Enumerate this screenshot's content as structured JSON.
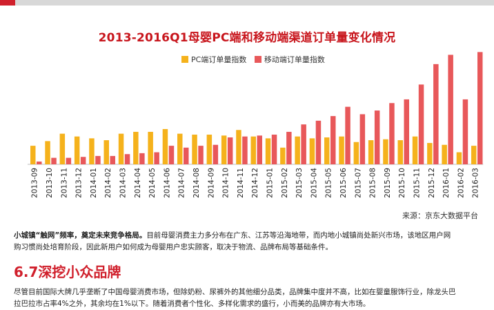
{
  "chart_data": {
    "type": "bar",
    "title": "2013-2016Q1母婴PC端和移动端渠道订单量变化情况",
    "categories": [
      "2013-09",
      "2013-10",
      "2013-11",
      "2013-12",
      "2014-01",
      "2014-02",
      "2014-03",
      "2014-04",
      "2014-05",
      "2014-06",
      "2014-07",
      "2014-08",
      "2014-09",
      "2014-10",
      "2014-11",
      "2014-12",
      "2015-01",
      "2015-02",
      "2015-03",
      "2015-04",
      "2015-05",
      "2015-06",
      "2015-07",
      "2015-08",
      "2015-09",
      "2015-10",
      "2015-11",
      "2015-12",
      "2016-01",
      "2016-02",
      "2016-03"
    ],
    "series": [
      {
        "name": "PC端订单量指数",
        "color": "#f5b21c",
        "values": [
          20,
          25,
          33,
          30,
          28,
          26,
          33,
          35,
          35,
          38,
          33,
          32,
          32,
          31,
          37,
          30,
          28,
          18,
          30,
          28,
          29,
          30,
          24,
          26,
          27,
          26,
          30,
          23,
          21,
          13,
          20
        ]
      },
      {
        "name": "移动端订单量指数",
        "color": "#e8585a",
        "values": [
          3,
          7,
          7,
          8,
          9,
          9,
          11,
          12,
          13,
          20,
          18,
          20,
          21,
          29,
          30,
          31,
          32,
          35,
          43,
          47,
          52,
          62,
          54,
          58,
          66,
          70,
          86,
          108,
          118,
          70,
          121
        ]
      }
    ],
    "ylim": [
      0,
      125
    ],
    "legend_position": "top-center",
    "source": "来源：京东大数据平台"
  },
  "page": {
    "para1_bold": "小城镇“触网”频率，奠定未来竞争格局。",
    "para1_line1": "目前母婴消费主力多分布在广东、江苏等沿海地带，而内地小城镇尚处新兴市场，该地区用户网",
    "para1_line2": "购习惯尚处培育阶段，因此新用户如何成为母婴用户忠实顾客，取决于物流、品牌布局等基础条件。",
    "section_title": "6.7深挖小众品牌",
    "para2_line1": "尽管目前国际大牌几乎垄断了中国母婴消费市场，但除奶粉、尿裤外的其他细分品类，品牌集中度并不高，比如在婴童服饰行业，除龙头巴",
    "para2_line2": "拉巴拉市占率4%之外，其余均在1%以下。随着消费者个性化、多样化需求的盛行，小而美的品牌亦有大市场。"
  }
}
